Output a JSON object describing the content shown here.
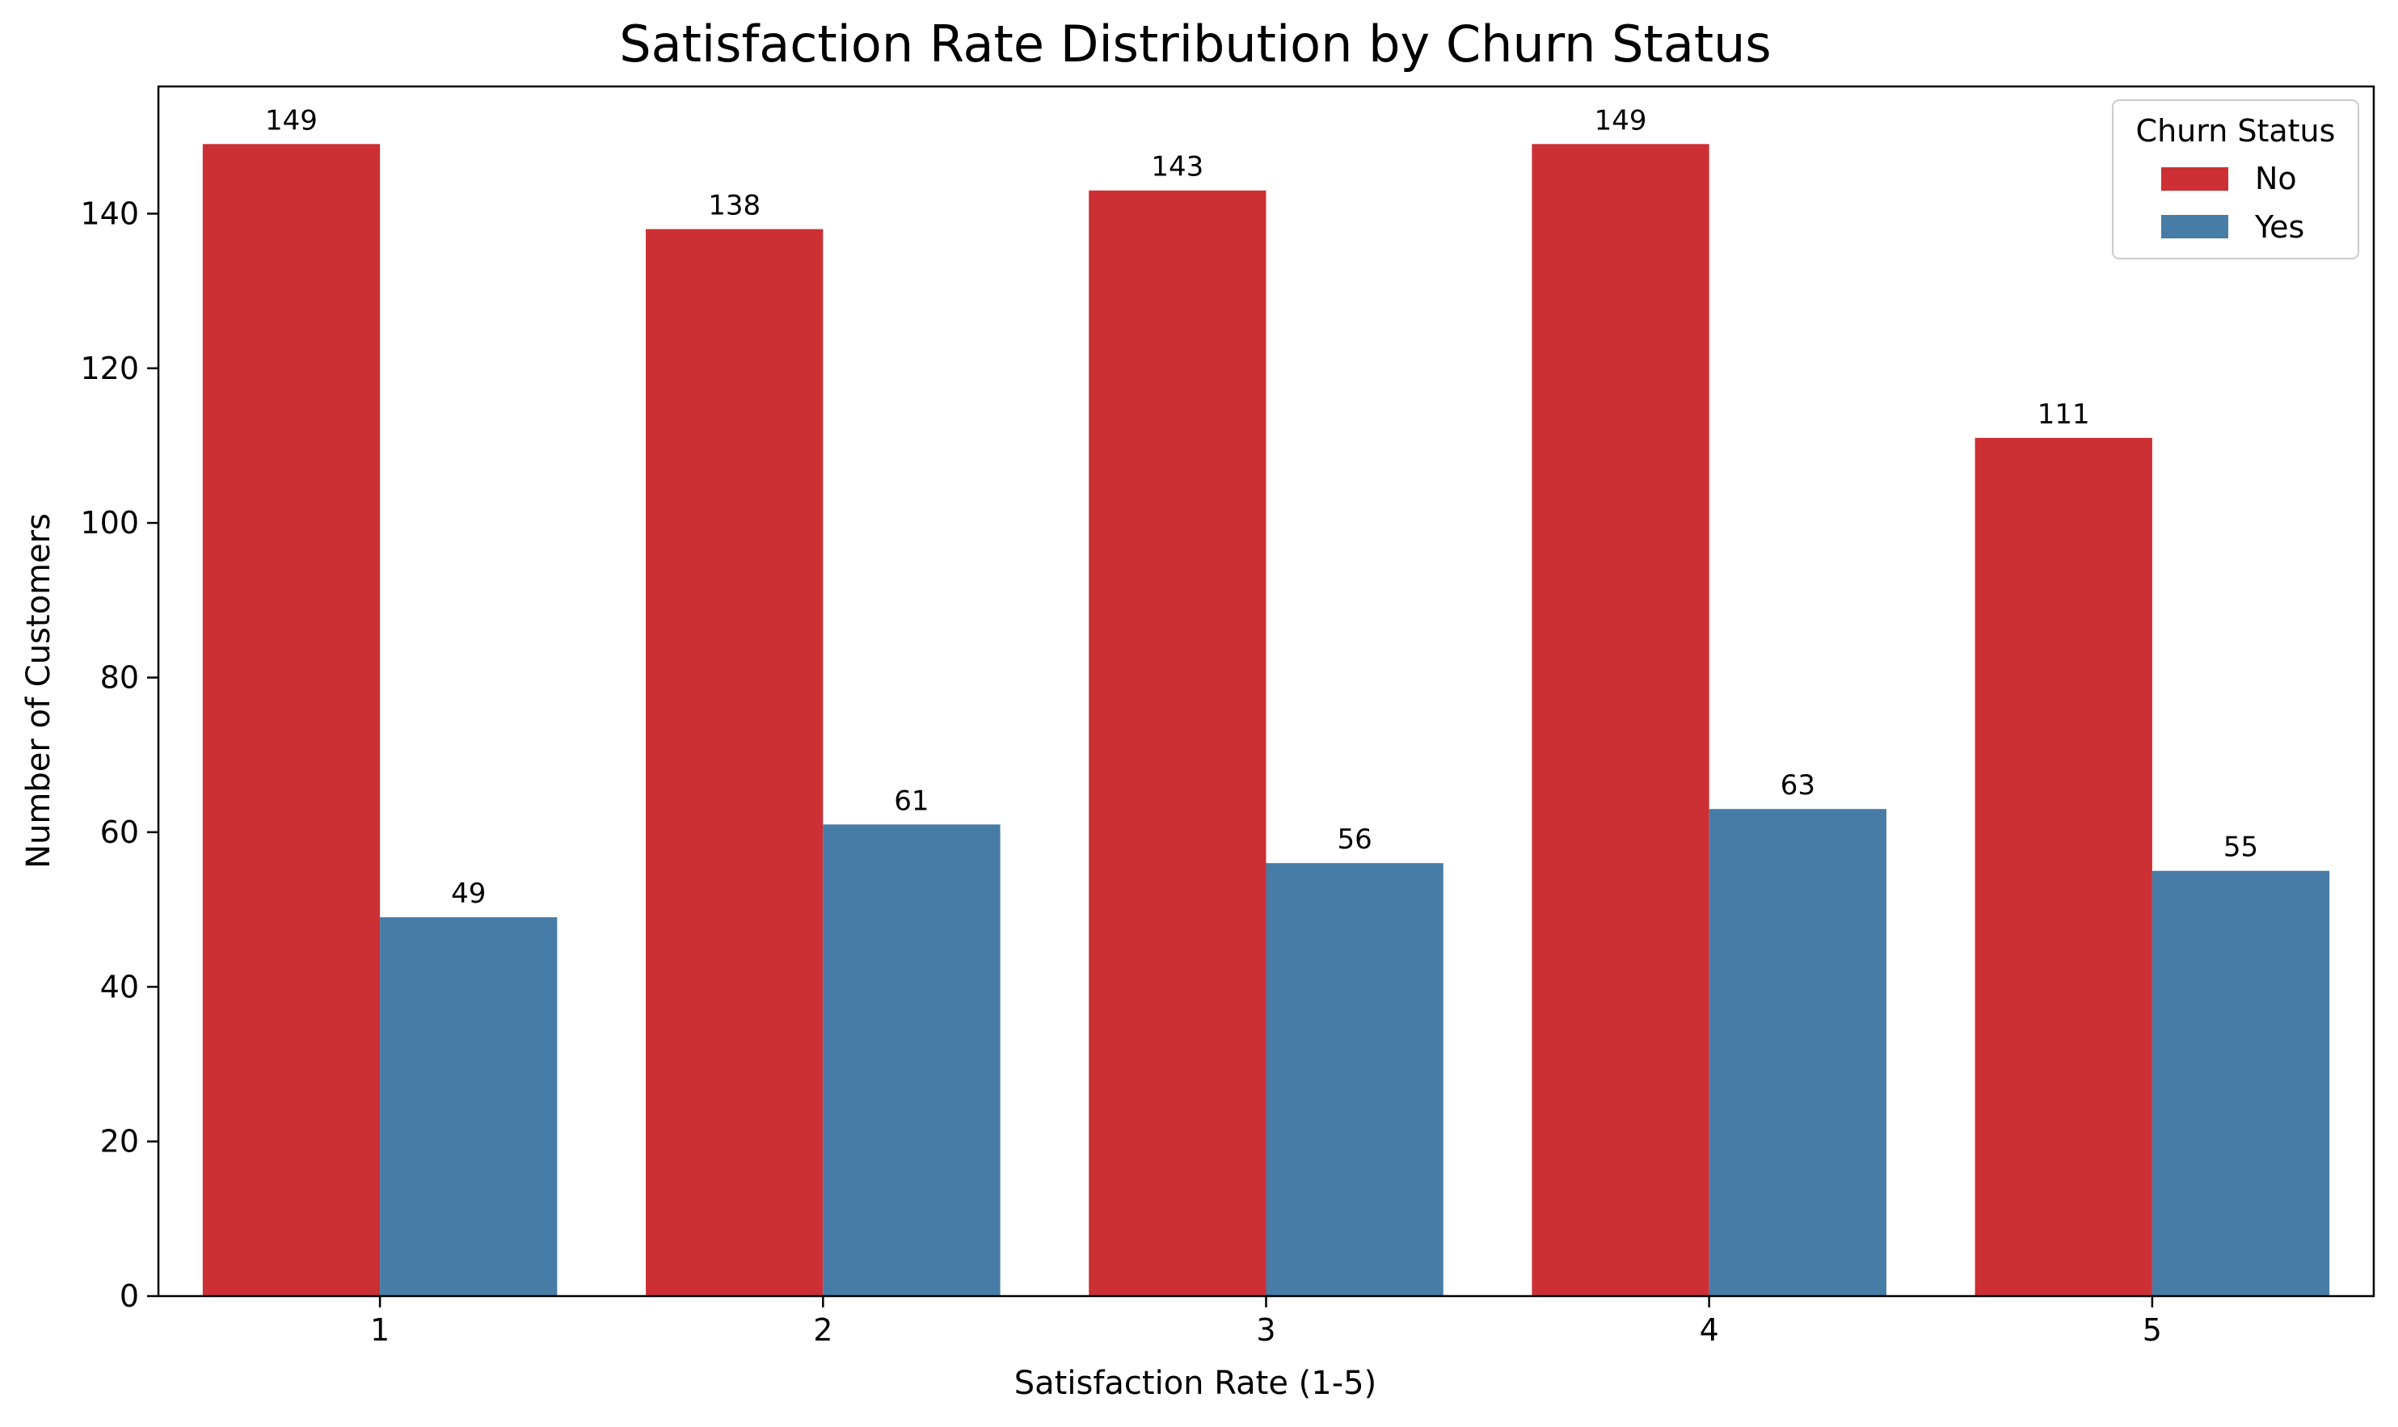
{
  "chart_data": {
    "type": "bar",
    "title": "Satisfaction Rate Distribution by Churn Status",
    "xlabel": "Satisfaction Rate (1-5)",
    "ylabel": "Number of Customers",
    "categories": [
      "1",
      "2",
      "3",
      "4",
      "5"
    ],
    "series": [
      {
        "name": "No",
        "color": "#cc3034",
        "values": [
          149,
          138,
          143,
          149,
          111
        ]
      },
      {
        "name": "Yes",
        "color": "#477ca7",
        "values": [
          49,
          61,
          56,
          63,
          55
        ]
      }
    ],
    "ylim": [
      0,
      156.45
    ],
    "yticks": [
      0,
      20,
      40,
      60,
      80,
      100,
      120,
      140
    ],
    "grid": false,
    "legend": {
      "title": "Churn Status",
      "placement": "top-right"
    },
    "data_labels": true
  }
}
